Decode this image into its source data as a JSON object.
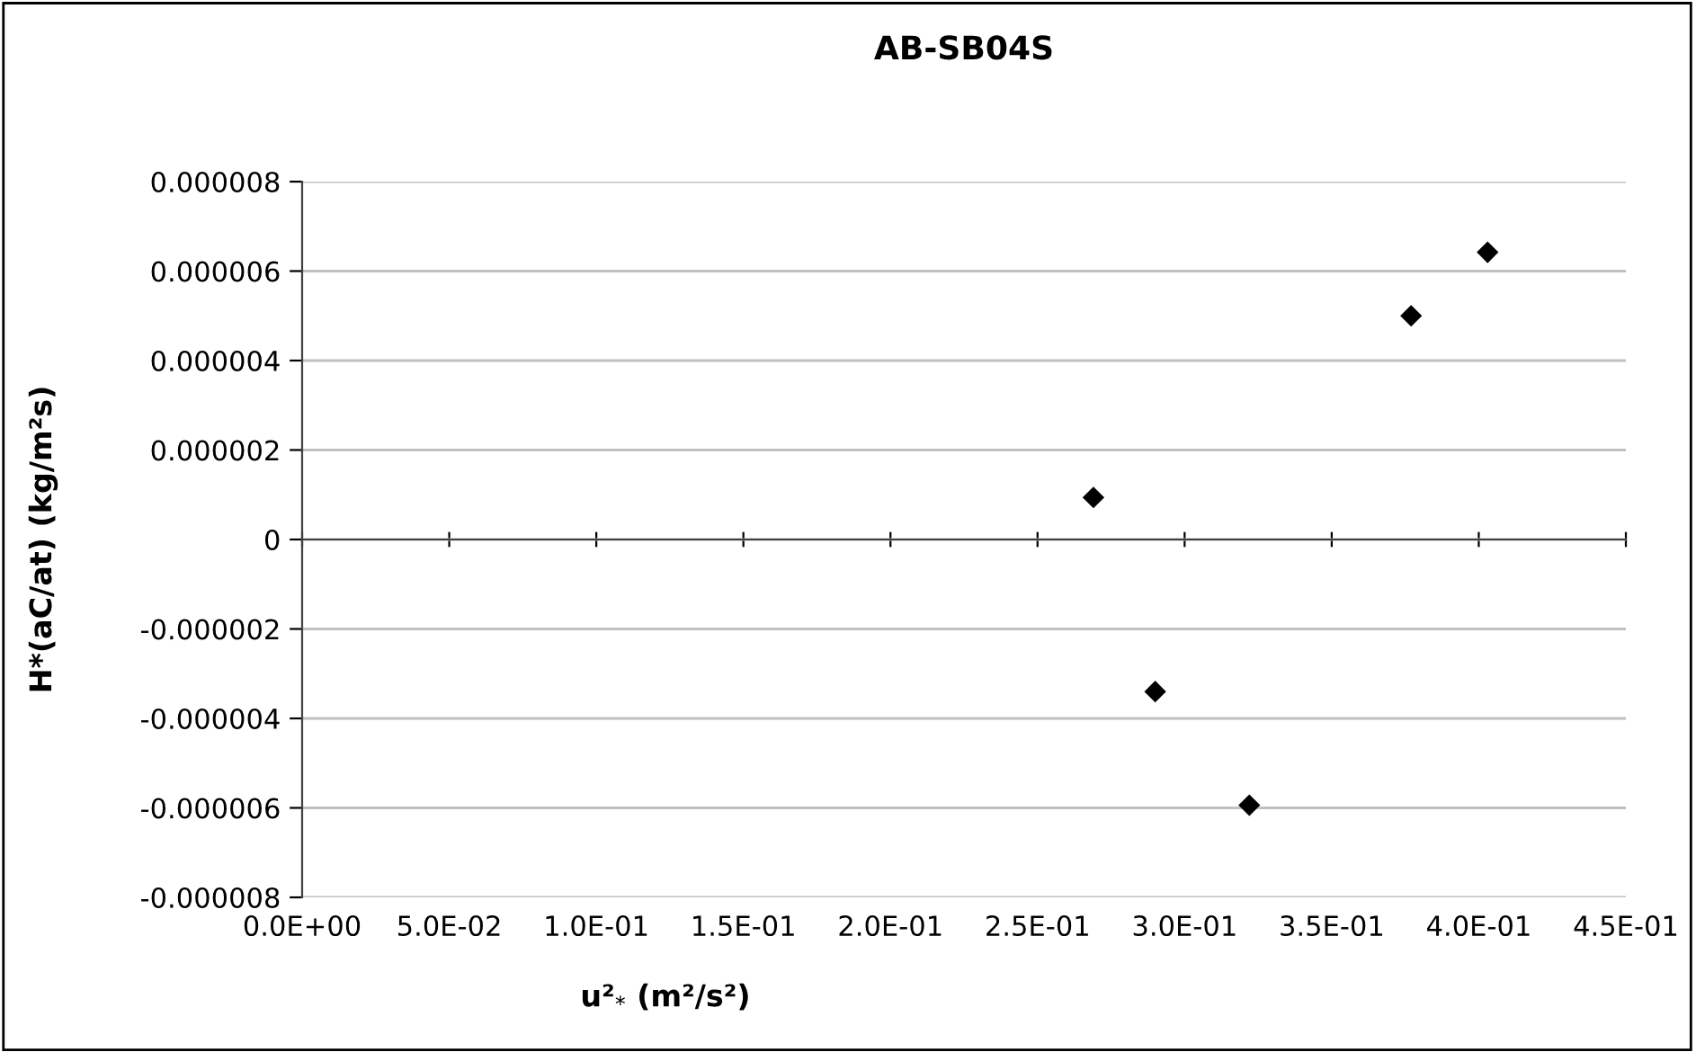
{
  "chart_data": {
    "type": "scatter",
    "title": "AB-SB04S",
    "xlabel": "u²$_{*}$ (m²/s²)",
    "ylabel": "H*(aC/at) (kg/m²s)",
    "x": [
      0.269,
      0.29,
      0.322,
      0.377,
      0.403
    ],
    "series": [
      {
        "color": "#000000",
        "values": [
          9.4e-07,
          -3.4e-06,
          -5.94e-06,
          5e-06,
          6.42e-06
        ]
      }
    ],
    "marker": "diamond",
    "grid": "y",
    "legend": false,
    "xlim": [
      0,
      0.45
    ],
    "xticks": [
      {
        "value": 0,
        "label": "0.0E+00"
      },
      {
        "value": 0.05,
        "label": "5.0E-02"
      },
      {
        "value": 0.1,
        "label": "1.0E-01"
      },
      {
        "value": 0.15,
        "label": "1.5E-01"
      },
      {
        "value": 0.2,
        "label": "2.0E-01"
      },
      {
        "value": 0.25,
        "label": "2.5E-01"
      },
      {
        "value": 0.3,
        "label": "3.0E-01"
      },
      {
        "value": 0.35,
        "label": "3.5E-01"
      },
      {
        "value": 0.4,
        "label": "4.0E-01"
      },
      {
        "value": 0.45,
        "label": "4.5E-01"
      }
    ],
    "ylim": [
      -8e-06,
      8e-06
    ],
    "yticks": [
      {
        "value": -8e-06,
        "label": "-0.000008"
      },
      {
        "value": -6e-06,
        "label": "-0.000006"
      },
      {
        "value": -4e-06,
        "label": "-0.000004"
      },
      {
        "value": -2e-06,
        "label": "-0.000002"
      },
      {
        "value": 0,
        "label": "0"
      },
      {
        "value": 2e-06,
        "label": "0.000002"
      },
      {
        "value": 4e-06,
        "label": "0.000004"
      },
      {
        "value": 6e-06,
        "label": "0.000006"
      },
      {
        "value": 8e-06,
        "label": "0.000008"
      }
    ]
  }
}
